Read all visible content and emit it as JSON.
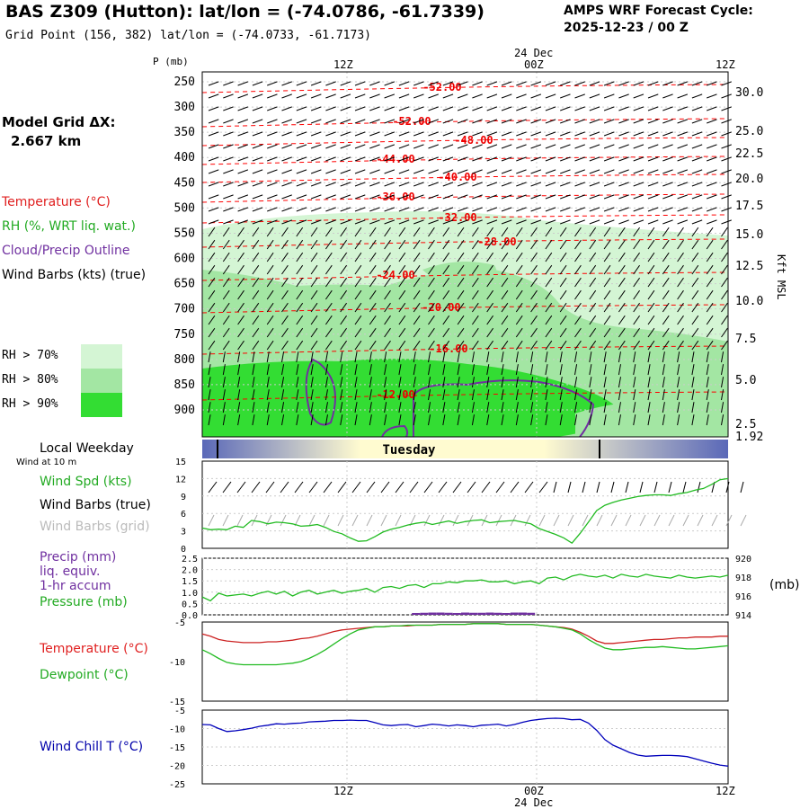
{
  "header": {
    "title": "BAS Z309 (Hutton):  lat/lon = (-74.0786, -61.7339)",
    "grid_point": "Grid Point (156, 382) lat/lon = (-74.0733, -61.7173)",
    "cycle_title": "AMPS WRF Forecast Cycle:",
    "cycle_value": "2025-12-23 / 00  Z"
  },
  "model": {
    "grid_label": "Model Grid ΔX:",
    "grid_value": "2.667 km"
  },
  "colors": {
    "temperature": "#ff0000",
    "rh": "#00cc00",
    "cloud": "#7030a0",
    "wind_chill": "#0000aa",
    "rh70": "#d4f5d4",
    "rh80": "#a3e6a3",
    "rh90": "#33dd33"
  },
  "legend": {
    "temperature": "Temperature (°C)",
    "rh": "RH (%, WRT liq. wat.)",
    "cloud": "Cloud/Precip Outline",
    "wind": "Wind Barbs (kts) (true)",
    "rh70": "RH > 70%",
    "rh80": "RH > 80%",
    "rh90": "RH > 90%"
  },
  "time_axis": {
    "top_ticks": [
      "12Z",
      "00Z",
      "12Z"
    ],
    "date": "24 Dec",
    "bottom_ticks": [
      "12Z",
      "00Z",
      "12Z"
    ],
    "bottom_date": "24 Dec"
  },
  "weekday": {
    "label": "Local Weekday",
    "day": "Tuesday",
    "wind_note": "Wind at 10 m"
  },
  "chart_data": [
    {
      "type": "contour",
      "id": "cross_section",
      "yaxis_title": "P (mb)",
      "pressure_ticks": [
        "250",
        "300",
        "350",
        "400",
        "450",
        "500",
        "550",
        "600",
        "650",
        "700",
        "750",
        "800",
        "850",
        "900"
      ],
      "height_ticks": [
        "30.0",
        "25.0",
        "22.5",
        "20.0",
        "17.5",
        "15.0",
        "12.5",
        "10.0",
        "7.5",
        "5.0",
        "2.5",
        "1.92"
      ],
      "height_label": "Kft MSL",
      "temperature_contours": [
        -52,
        -52,
        -48,
        -44,
        -40,
        -36,
        -32,
        -28,
        -24,
        -20,
        -16,
        -12
      ],
      "temperature_labels": [
        "-52.00",
        "-52.00",
        "-48.00",
        "-44.00",
        "-40.00",
        "-36.00",
        "-32.00",
        "-28.00",
        "-24.00",
        "-20.00",
        "-16.00",
        "-12.00"
      ]
    },
    {
      "type": "line",
      "id": "wind",
      "series_labels": [
        "Wind Spd (kts)",
        "Wind Barbs (true)",
        "Wind Barbs (grid)"
      ],
      "yticks": [
        "15",
        "12",
        "9",
        "6",
        "3",
        "0"
      ],
      "ylim": [
        0,
        15
      ],
      "wind_speed": [
        3.5,
        3.2,
        3.3,
        3.2,
        3.8,
        3.6,
        4.8,
        4.6,
        4.2,
        4.5,
        4.4,
        4.2,
        3.8,
        3.9,
        4.1,
        3.6,
        2.9,
        2.5,
        1.8,
        1.2,
        1.3,
        2.0,
        2.8,
        3.3,
        3.6,
        4.0,
        4.3,
        4.5,
        4.1,
        4.4,
        4.7,
        4.3,
        4.6,
        4.8,
        4.9,
        4.4,
        4.6,
        4.7,
        4.8,
        4.5,
        4.2,
        3.4,
        2.9,
        2.4,
        1.8,
        0.9,
        2.6,
        4.5,
        6.5,
        7.4,
        7.9,
        8.3,
        8.6,
        8.9,
        9.1,
        9.2,
        9.2,
        9.1,
        9.4,
        9.6,
        10.0,
        10.3,
        11.0,
        11.8,
        12.0
      ]
    },
    {
      "type": "line",
      "id": "precip_pressure",
      "series_labels": [
        "Precip (mm)",
        "liq. equiv.",
        "1-hr accum",
        "Pressure (mb)"
      ],
      "left_ticks": [
        "2.5",
        "2.0",
        "1.5",
        "1.0",
        "0.5",
        "0.0"
      ],
      "right_ticks": [
        "920",
        "918",
        "916",
        "914"
      ],
      "right_unit": "(mb)",
      "ylim_precip": [
        0,
        2.5
      ],
      "ylim_pressure": [
        914,
        920
      ],
      "pressure": [
        915.9,
        915.5,
        916.3,
        916.0,
        916.1,
        916.2,
        916.0,
        916.3,
        916.5,
        916.2,
        916.5,
        916.0,
        916.4,
        916.6,
        916.2,
        916.4,
        916.6,
        916.3,
        916.5,
        916.6,
        916.8,
        916.4,
        916.9,
        917.0,
        916.8,
        917.1,
        917.2,
        916.9,
        917.3,
        917.3,
        917.5,
        917.4,
        917.6,
        917.6,
        917.7,
        917.5,
        917.5,
        917.6,
        917.3,
        917.5,
        917.6,
        917.3,
        917.9,
        918.0,
        917.7,
        918.1,
        918.3,
        918.1,
        918.0,
        918.2,
        917.9,
        918.3,
        918.1,
        918.0,
        918.3,
        918.1,
        918.0,
        917.9,
        918.2,
        918.0,
        917.9,
        918.0,
        918.1,
        918.0,
        918.2
      ],
      "precip": [
        0,
        0,
        0,
        0,
        0,
        0,
        0,
        0,
        0,
        0,
        0,
        0,
        0,
        0,
        0,
        0,
        0,
        0,
        0,
        0,
        0,
        0,
        0,
        0,
        0,
        0,
        0.08,
        0.09,
        0.1,
        0.1,
        0.09,
        0.08,
        0.1,
        0.09,
        0.09,
        0.1,
        0.09,
        0.08,
        0.1,
        0.1,
        0.09,
        0,
        0,
        0,
        0,
        0,
        0,
        0,
        0,
        0,
        0,
        0,
        0,
        0,
        0,
        0,
        0,
        0,
        0,
        0,
        0,
        0,
        0,
        0,
        0
      ]
    },
    {
      "type": "line",
      "id": "temp_dewpoint",
      "series_labels": [
        "Temperature (°C)",
        "Dewpoint (°C)"
      ],
      "yticks": [
        "-5",
        "-10",
        "-15"
      ],
      "ylim": [
        -15,
        -5
      ],
      "temperature": [
        -6.5,
        -6.8,
        -7.2,
        -7.4,
        -7.5,
        -7.6,
        -7.6,
        -7.6,
        -7.5,
        -7.5,
        -7.4,
        -7.3,
        -7.1,
        -7.0,
        -6.8,
        -6.5,
        -6.2,
        -6.0,
        -5.9,
        -5.8,
        -5.7,
        -5.6,
        -5.6,
        -5.5,
        -5.5,
        -5.5,
        -5.4,
        -5.4,
        -5.4,
        -5.3,
        -5.3,
        -5.3,
        -5.3,
        -5.2,
        -5.2,
        -5.2,
        -5.2,
        -5.3,
        -5.3,
        -5.3,
        -5.3,
        -5.4,
        -5.5,
        -5.6,
        -5.7,
        -5.9,
        -6.3,
        -6.8,
        -7.4,
        -7.7,
        -7.7,
        -7.6,
        -7.5,
        -7.4,
        -7.3,
        -7.2,
        -7.2,
        -7.1,
        -7.0,
        -7.0,
        -6.9,
        -6.9,
        -6.9,
        -6.8,
        -6.8
      ],
      "dewpoint": [
        -8.5,
        -9.0,
        -9.6,
        -10.1,
        -10.3,
        -10.4,
        -10.4,
        -10.4,
        -10.4,
        -10.4,
        -10.3,
        -10.2,
        -10.0,
        -9.6,
        -9.1,
        -8.5,
        -7.8,
        -7.1,
        -6.5,
        -6.0,
        -5.8,
        -5.6,
        -5.6,
        -5.5,
        -5.5,
        -5.4,
        -5.4,
        -5.4,
        -5.4,
        -5.3,
        -5.3,
        -5.3,
        -5.3,
        -5.2,
        -5.2,
        -5.2,
        -5.2,
        -5.3,
        -5.3,
        -5.3,
        -5.3,
        -5.4,
        -5.5,
        -5.6,
        -5.8,
        -6.0,
        -6.5,
        -7.2,
        -7.8,
        -8.3,
        -8.5,
        -8.5,
        -8.4,
        -8.3,
        -8.2,
        -8.2,
        -8.1,
        -8.2,
        -8.3,
        -8.4,
        -8.4,
        -8.3,
        -8.2,
        -8.1,
        -8.0
      ]
    },
    {
      "type": "line",
      "id": "wind_chill",
      "series_labels": [
        "Wind Chill T (°C)"
      ],
      "yticks": [
        "-5",
        "-10",
        "-15",
        "-20",
        "-25"
      ],
      "ylim": [
        -25,
        -5
      ],
      "wind_chill": [
        -8.9,
        -9.0,
        -10.0,
        -10.8,
        -10.6,
        -10.3,
        -9.9,
        -9.4,
        -9.1,
        -8.7,
        -8.8,
        -8.6,
        -8.5,
        -8.2,
        -8.1,
        -8.0,
        -7.8,
        -7.8,
        -7.7,
        -7.8,
        -7.8,
        -8.4,
        -9.0,
        -9.2,
        -9.0,
        -8.9,
        -9.5,
        -9.2,
        -8.8,
        -9.0,
        -9.3,
        -9.0,
        -9.2,
        -9.5,
        -9.1,
        -9.0,
        -8.8,
        -9.3,
        -8.9,
        -8.3,
        -7.8,
        -7.5,
        -7.3,
        -7.2,
        -7.3,
        -7.6,
        -7.5,
        -8.5,
        -10.5,
        -13.0,
        -14.5,
        -15.5,
        -16.5,
        -17.2,
        -17.5,
        -17.4,
        -17.3,
        -17.3,
        -17.4,
        -17.6,
        -18.2,
        -18.8,
        -19.4,
        -19.9,
        -20.2
      ]
    }
  ]
}
